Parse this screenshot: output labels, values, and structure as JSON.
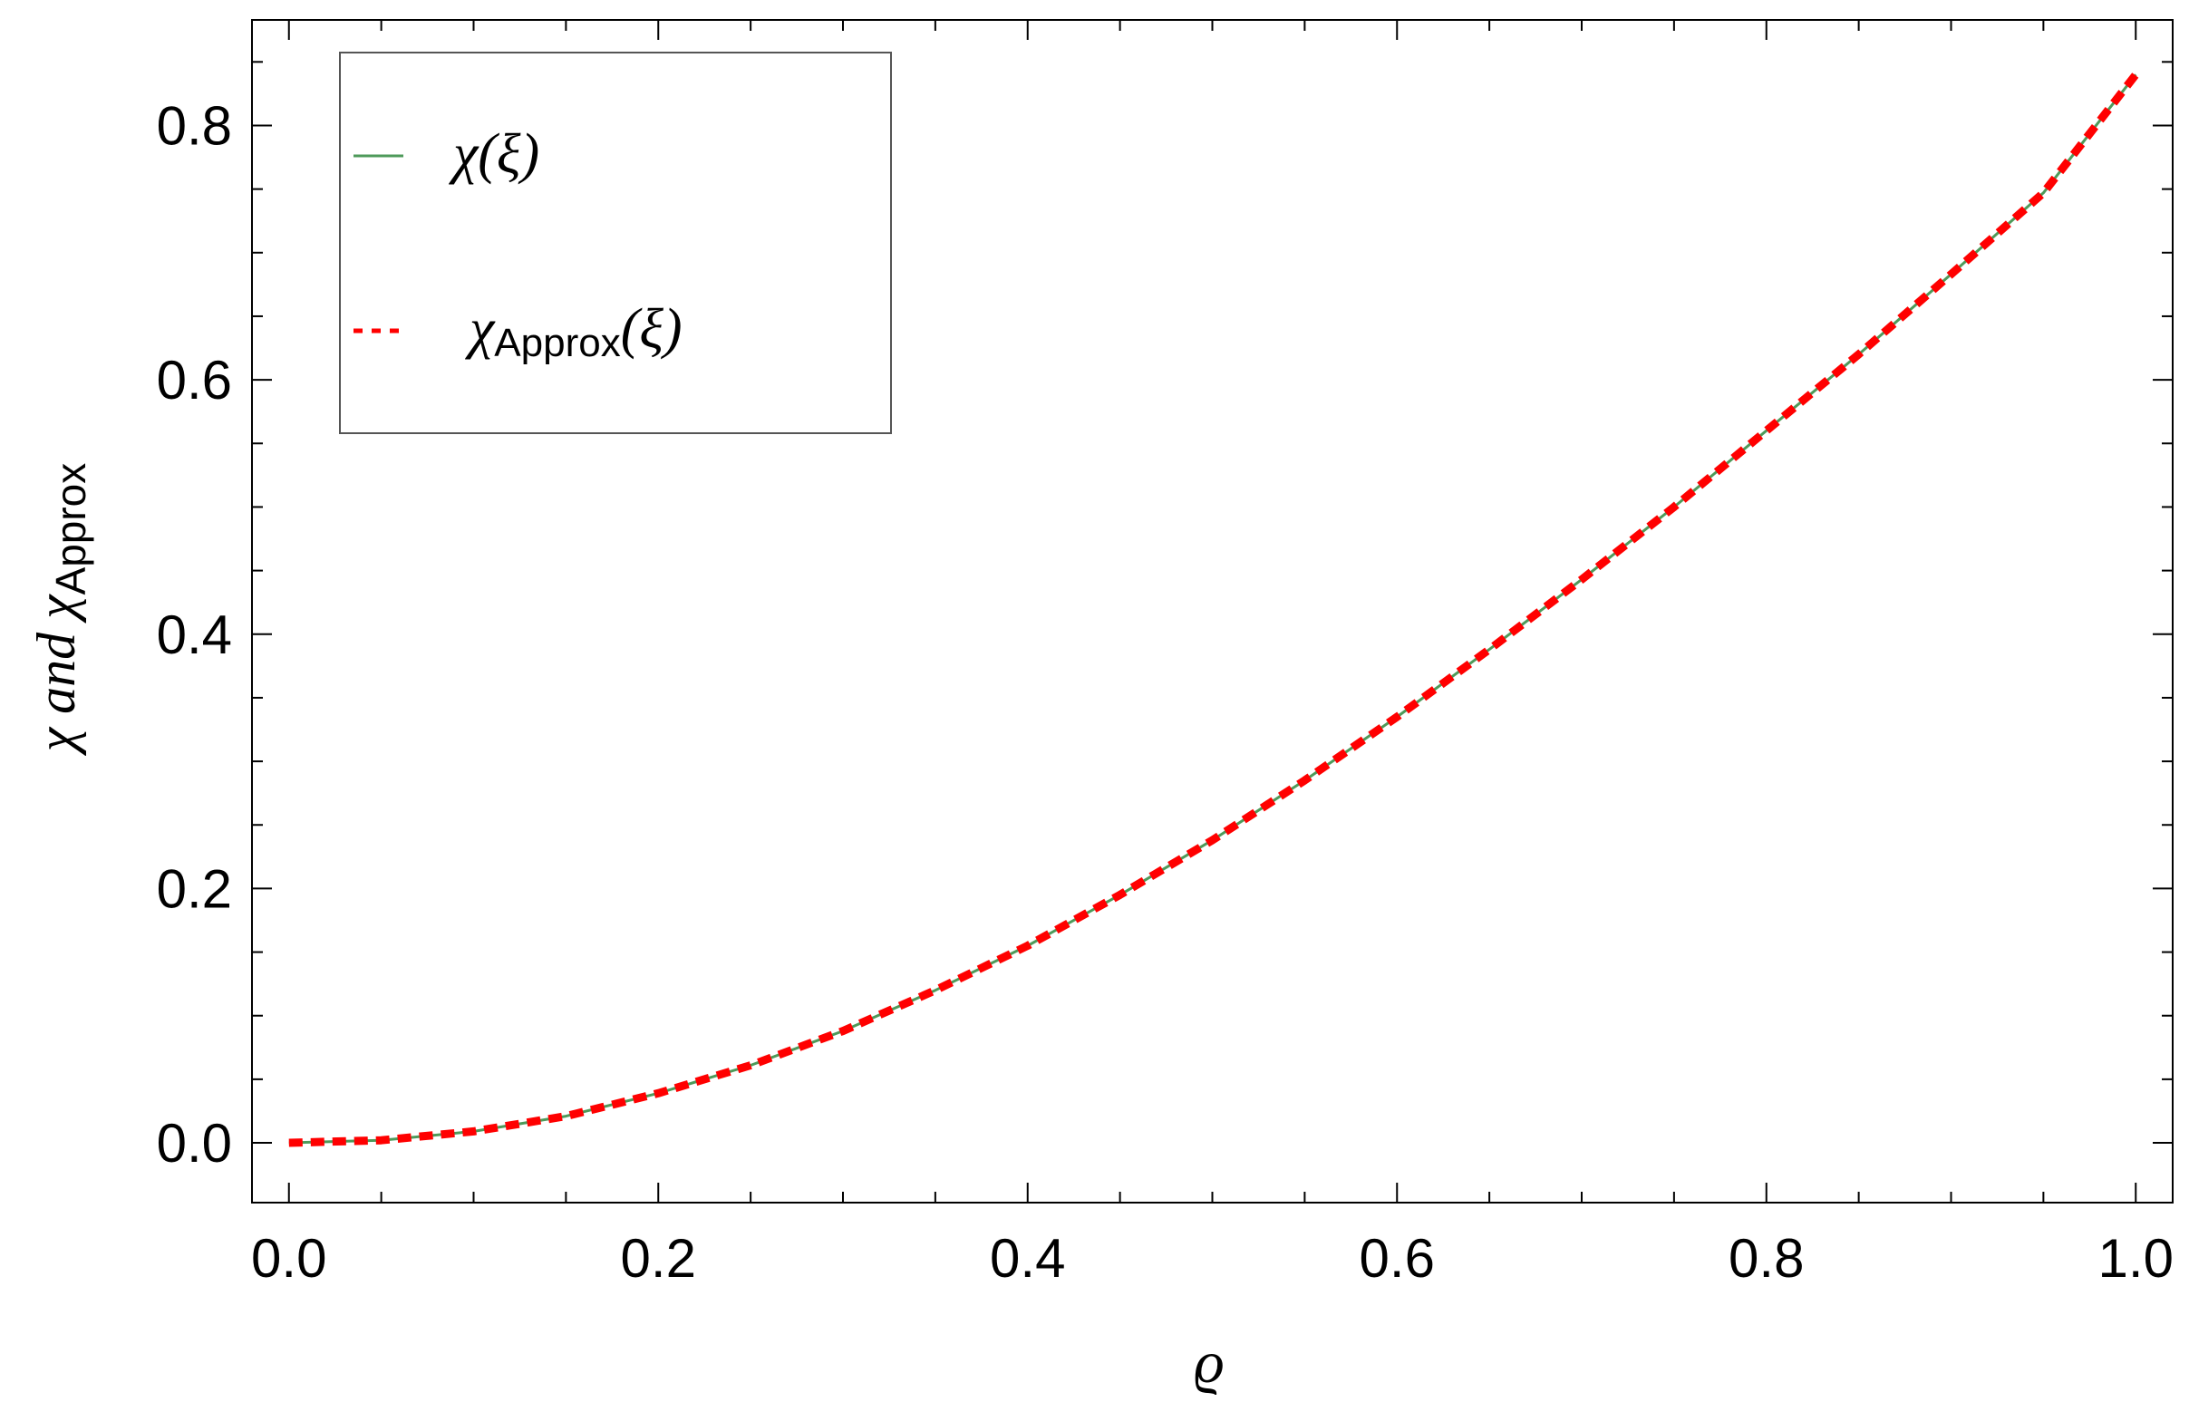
{
  "chart_data": {
    "type": "line",
    "xlabel": "ϱ",
    "ylabel": {
      "main": "χ and χ",
      "sub": "Approx"
    },
    "xlim": [
      -0.02,
      1.02
    ],
    "ylim": [
      -0.047,
      0.883
    ],
    "x_ticks": [
      {
        "value": 0.0,
        "label": "0.0"
      },
      {
        "value": 0.2,
        "label": "0.2"
      },
      {
        "value": 0.4,
        "label": "0.4"
      },
      {
        "value": 0.6,
        "label": "0.6"
      },
      {
        "value": 0.8,
        "label": "0.8"
      },
      {
        "value": 1.0,
        "label": "1.0"
      }
    ],
    "y_ticks": [
      {
        "value": 0.0,
        "label": "0.0"
      },
      {
        "value": 0.2,
        "label": "0.2"
      },
      {
        "value": 0.4,
        "label": "0.4"
      },
      {
        "value": 0.6,
        "label": "0.6"
      },
      {
        "value": 0.8,
        "label": "0.8"
      }
    ],
    "grid": false,
    "legend_position": "top-left",
    "legend": [
      {
        "main": "χ(ξ)",
        "sub": "",
        "tail": ""
      },
      {
        "main": "χ",
        "sub": "Approx",
        "tail": "(ξ)"
      }
    ],
    "series": [
      {
        "style": "solid",
        "color": "#4e9a5a",
        "x": [
          0.0,
          0.05,
          0.1,
          0.15,
          0.2,
          0.25,
          0.3,
          0.35,
          0.4,
          0.45,
          0.5,
          0.55,
          0.6,
          0.65,
          0.7,
          0.75,
          0.8,
          0.85,
          0.9,
          0.95,
          1.0
        ],
        "y": [
          0.0,
          0.002,
          0.009,
          0.021,
          0.039,
          0.061,
          0.088,
          0.12,
          0.155,
          0.195,
          0.238,
          0.285,
          0.335,
          0.388,
          0.443,
          0.5,
          0.56,
          0.62,
          0.683,
          0.747,
          0.84
        ]
      },
      {
        "style": "dashed",
        "color": "#ff0000",
        "x": [
          0.0,
          0.05,
          0.1,
          0.15,
          0.2,
          0.25,
          0.3,
          0.35,
          0.4,
          0.45,
          0.5,
          0.55,
          0.6,
          0.65,
          0.7,
          0.75,
          0.8,
          0.85,
          0.9,
          0.95,
          1.0
        ],
        "y": [
          0.0,
          0.002,
          0.009,
          0.021,
          0.039,
          0.061,
          0.088,
          0.12,
          0.155,
          0.195,
          0.238,
          0.285,
          0.335,
          0.388,
          0.443,
          0.5,
          0.56,
          0.62,
          0.683,
          0.747,
          0.84
        ]
      }
    ]
  }
}
